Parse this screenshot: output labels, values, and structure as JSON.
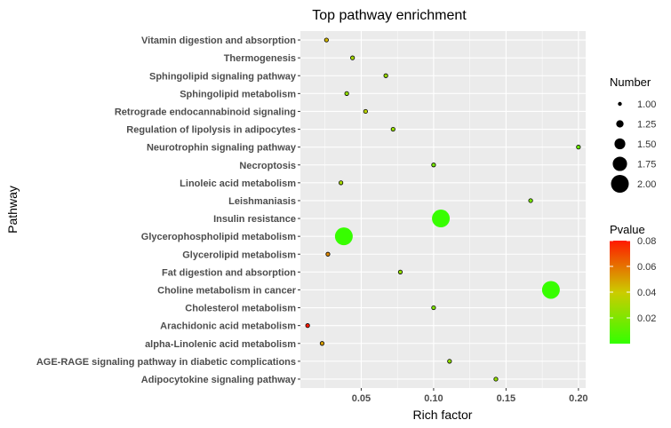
{
  "chart_data": {
    "type": "scatter",
    "title": "Top pathway enrichment",
    "xlabel": "Rich factor",
    "ylabel": "Pathway",
    "xlim": [
      0.008,
      0.205
    ],
    "x_ticks": [
      0.05,
      0.1,
      0.15,
      0.2
    ],
    "x_tick_labels": [
      "0.05",
      "0.10",
      "0.15",
      "0.20"
    ],
    "grid": true,
    "legend_placement": "right",
    "color_low": "#33ff00",
    "color_mid": "#cccc00",
    "color_high": "#ff1a00",
    "pathways": [
      {
        "name": "Vitamin digestion and absorption",
        "rich_factor": 0.026,
        "number": 1,
        "pvalue": 0.045
      },
      {
        "name": "Thermogenesis",
        "rich_factor": 0.044,
        "number": 1,
        "pvalue": 0.03
      },
      {
        "name": "Sphingolipid signaling pathway",
        "rich_factor": 0.067,
        "number": 1,
        "pvalue": 0.027
      },
      {
        "name": "Sphingolipid metabolism",
        "rich_factor": 0.04,
        "number": 1,
        "pvalue": 0.025
      },
      {
        "name": "Retrograde endocannabinoid signaling",
        "rich_factor": 0.053,
        "number": 1,
        "pvalue": 0.035
      },
      {
        "name": "Regulation of lipolysis in adipocytes",
        "rich_factor": 0.072,
        "number": 1,
        "pvalue": 0.026
      },
      {
        "name": "Neurotrophin signaling pathway",
        "rich_factor": 0.2,
        "number": 1,
        "pvalue": 0.015
      },
      {
        "name": "Necroptosis",
        "rich_factor": 0.1,
        "number": 1,
        "pvalue": 0.018
      },
      {
        "name": "Linoleic acid metabolism",
        "rich_factor": 0.036,
        "number": 1,
        "pvalue": 0.03
      },
      {
        "name": "Leishmaniasis",
        "rich_factor": 0.167,
        "number": 1,
        "pvalue": 0.018
      },
      {
        "name": "Insulin resistance",
        "rich_factor": 0.105,
        "number": 2,
        "pvalue": 0.001
      },
      {
        "name": "Glycerophospholipid metabolism",
        "rich_factor": 0.038,
        "number": 2,
        "pvalue": 0.001
      },
      {
        "name": "Glycerolipid metabolism",
        "rich_factor": 0.027,
        "number": 1,
        "pvalue": 0.055
      },
      {
        "name": "Fat digestion and absorption",
        "rich_factor": 0.077,
        "number": 1,
        "pvalue": 0.025
      },
      {
        "name": "Choline metabolism in cancer",
        "rich_factor": 0.181,
        "number": 2,
        "pvalue": 0.001
      },
      {
        "name": "Cholesterol metabolism",
        "rich_factor": 0.1,
        "number": 1,
        "pvalue": 0.02
      },
      {
        "name": "Arachidonic acid metabolism",
        "rich_factor": 0.013,
        "number": 1,
        "pvalue": 0.08
      },
      {
        "name": "alpha-Linolenic acid metabolism",
        "rich_factor": 0.023,
        "number": 1,
        "pvalue": 0.05
      },
      {
        "name": "AGE-RAGE signaling pathway in diabetic complications",
        "rich_factor": 0.111,
        "number": 1,
        "pvalue": 0.025
      },
      {
        "name": "Adipocytokine signaling pathway",
        "rich_factor": 0.143,
        "number": 1,
        "pvalue": 0.025
      }
    ],
    "size_legend": {
      "title": "Number",
      "entries": [
        {
          "label": "1.00",
          "value": 1.0
        },
        {
          "label": "1.25",
          "value": 1.25
        },
        {
          "label": "1.50",
          "value": 1.5
        },
        {
          "label": "1.75",
          "value": 1.75
        },
        {
          "label": "2.00",
          "value": 2.0
        }
      ]
    },
    "color_legend": {
      "title": "Pvalue",
      "range": [
        0.0,
        0.08
      ],
      "ticks": [
        {
          "label": "0.02",
          "value": 0.02
        },
        {
          "label": "0.04",
          "value": 0.04
        },
        {
          "label": "0.06",
          "value": 0.06
        },
        {
          "label": "0.08",
          "value": 0.08
        }
      ]
    }
  }
}
